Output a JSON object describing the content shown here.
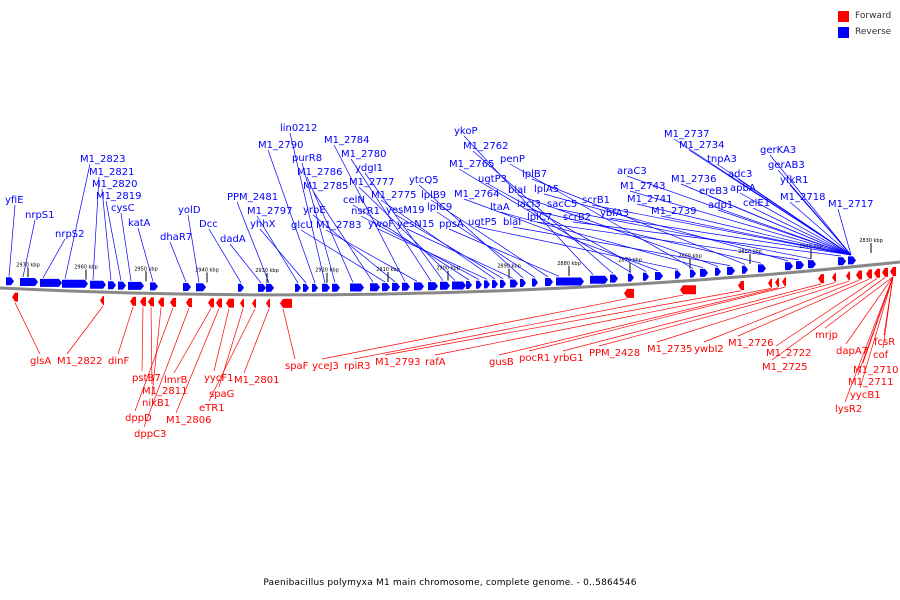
{
  "legend": {
    "forward_label": "Forward",
    "reverse_label": "Reverse",
    "forward_color": "#ff0000",
    "reverse_color": "#0000ff"
  },
  "caption": "Paenibacillus polymyxa M1 main chromosome, complete genome. - 0..5864546",
  "ticks": [
    {
      "label": "2970 kbp",
      "pos": 2970
    },
    {
      "label": "2960 kbp",
      "pos": 2960
    },
    {
      "label": "2950 kbp",
      "pos": 2950
    },
    {
      "label": "2940 kbp",
      "pos": 2940
    },
    {
      "label": "2930 kbp",
      "pos": 2930
    },
    {
      "label": "2920 kbp",
      "pos": 2920
    },
    {
      "label": "2910 kbp",
      "pos": 2910
    },
    {
      "label": "2900 kbp",
      "pos": 2900
    },
    {
      "label": "2890 kbp",
      "pos": 2890
    },
    {
      "label": "2880 kbp",
      "pos": 2880
    },
    {
      "label": "2870 kbp",
      "pos": 2870
    },
    {
      "label": "2860 kbp",
      "pos": 2860
    },
    {
      "label": "2850 kbp",
      "pos": 2850
    },
    {
      "label": "2840 kbp",
      "pos": 2840
    },
    {
      "label": "2830 kbp",
      "pos": 2830
    }
  ],
  "reverse_genes": [
    "yfiE",
    "nrpS1",
    "nrpS2",
    "M1_2823",
    "M1_2821",
    "M1_2820",
    "M1_2819",
    "cysC",
    "katA",
    "dhaR7",
    "yolD",
    "Dcc",
    "dadA",
    "PPM_2481",
    "M1_2797",
    "yhhX",
    "M1_2790",
    "lin0212",
    "purR8",
    "M1_2786",
    "M1_2785",
    "glcU",
    "yrbE",
    "M1_2784",
    "M1_2783",
    "M1_2780",
    "ydgI1",
    "M1_2777",
    "celN",
    "nsrR1",
    "ywoF",
    "M1_2775",
    "yesM19",
    "yesN15",
    "ytcQ5",
    "lplC9",
    "lplB9",
    "ppsA",
    "ykoP",
    "M1_2762",
    "M1_2765",
    "ugtP3",
    "M1_2764",
    "ugtP5",
    "penP",
    "ltaA",
    "blaI",
    "blaI",
    "lplB7",
    "lacI3",
    "lplA5",
    "lplC7",
    "sacC5",
    "scrB2",
    "scrB1",
    "ybfA3",
    "araC3",
    "M1_2743",
    "M1_2741",
    "M1_2739",
    "M1_2737",
    "M1_2734",
    "M1_2736",
    "tnpA3",
    "ereB3",
    "adc3",
    "adp1",
    "apbA",
    "celE1",
    "gerKA3",
    "gerAB3",
    "yfkR1",
    "M1_2718",
    "M1_2717"
  ],
  "forward_genes": [
    "glsA",
    "M1_2822",
    "dinF",
    "pstB7",
    "M1_2811",
    "nikB1",
    "dppD",
    "dppC3",
    "lmrB",
    "M1_2806",
    "yycF1",
    "spaG",
    "eTR1",
    "M1_2801",
    "spaF",
    "yceJ3",
    "rpiR3",
    "M1_2793",
    "rafA",
    "gusB",
    "pocR1",
    "yrbG1",
    "PPM_2428",
    "M1_2735",
    "ywbI2",
    "M1_2726",
    "M1_2722",
    "M1_2725",
    "mrjp",
    "lysR2",
    "dapA7",
    "yycB1",
    "M1_2711",
    "M1_2710",
    "cof",
    "fcsR"
  ]
}
